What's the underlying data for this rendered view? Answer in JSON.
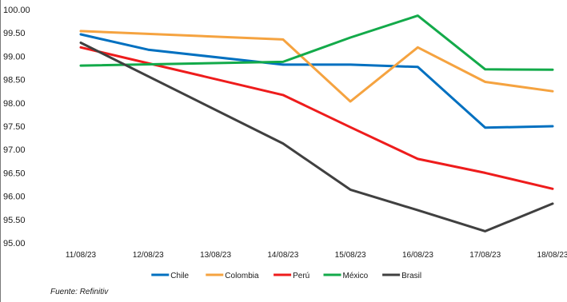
{
  "chart_data": {
    "type": "line",
    "title": "",
    "xlabel": "",
    "ylabel": "",
    "categories": [
      "11/08/23",
      "12/08/23",
      "13/08/23",
      "14/08/23",
      "15/08/23",
      "16/08/23",
      "17/08/23",
      "18/08/23"
    ],
    "ylim": [
      95.0,
      100.0
    ],
    "yticks": [
      "95.00",
      "95.50",
      "96.00",
      "96.50",
      "97.00",
      "97.50",
      "98.00",
      "98.50",
      "99.00",
      "99.50",
      "100.00"
    ],
    "grid": false,
    "legend_position": "bottom",
    "series": [
      {
        "name": "Chile",
        "color": "#0070C0",
        "values": [
          99.47,
          99.14,
          null,
          98.82,
          98.82,
          98.77,
          97.47,
          97.5
        ]
      },
      {
        "name": "Colombia",
        "color": "#F5A340",
        "values": [
          99.54,
          null,
          null,
          99.36,
          98.03,
          99.19,
          98.45,
          98.25
        ]
      },
      {
        "name": "Perú",
        "color": "#EE1C1C",
        "values": [
          99.19,
          null,
          null,
          98.17,
          97.48,
          96.8,
          96.5,
          96.16
        ]
      },
      {
        "name": "México",
        "color": "#13AA4A",
        "values": [
          98.8,
          null,
          null,
          98.88,
          99.4,
          99.87,
          98.72,
          98.71
        ]
      },
      {
        "name": "Brasil",
        "color": "#404040",
        "values": [
          99.29,
          null,
          null,
          97.13,
          96.14,
          95.7,
          95.25,
          95.84
        ]
      }
    ]
  },
  "source_note": "Fuente: Refinitiv"
}
